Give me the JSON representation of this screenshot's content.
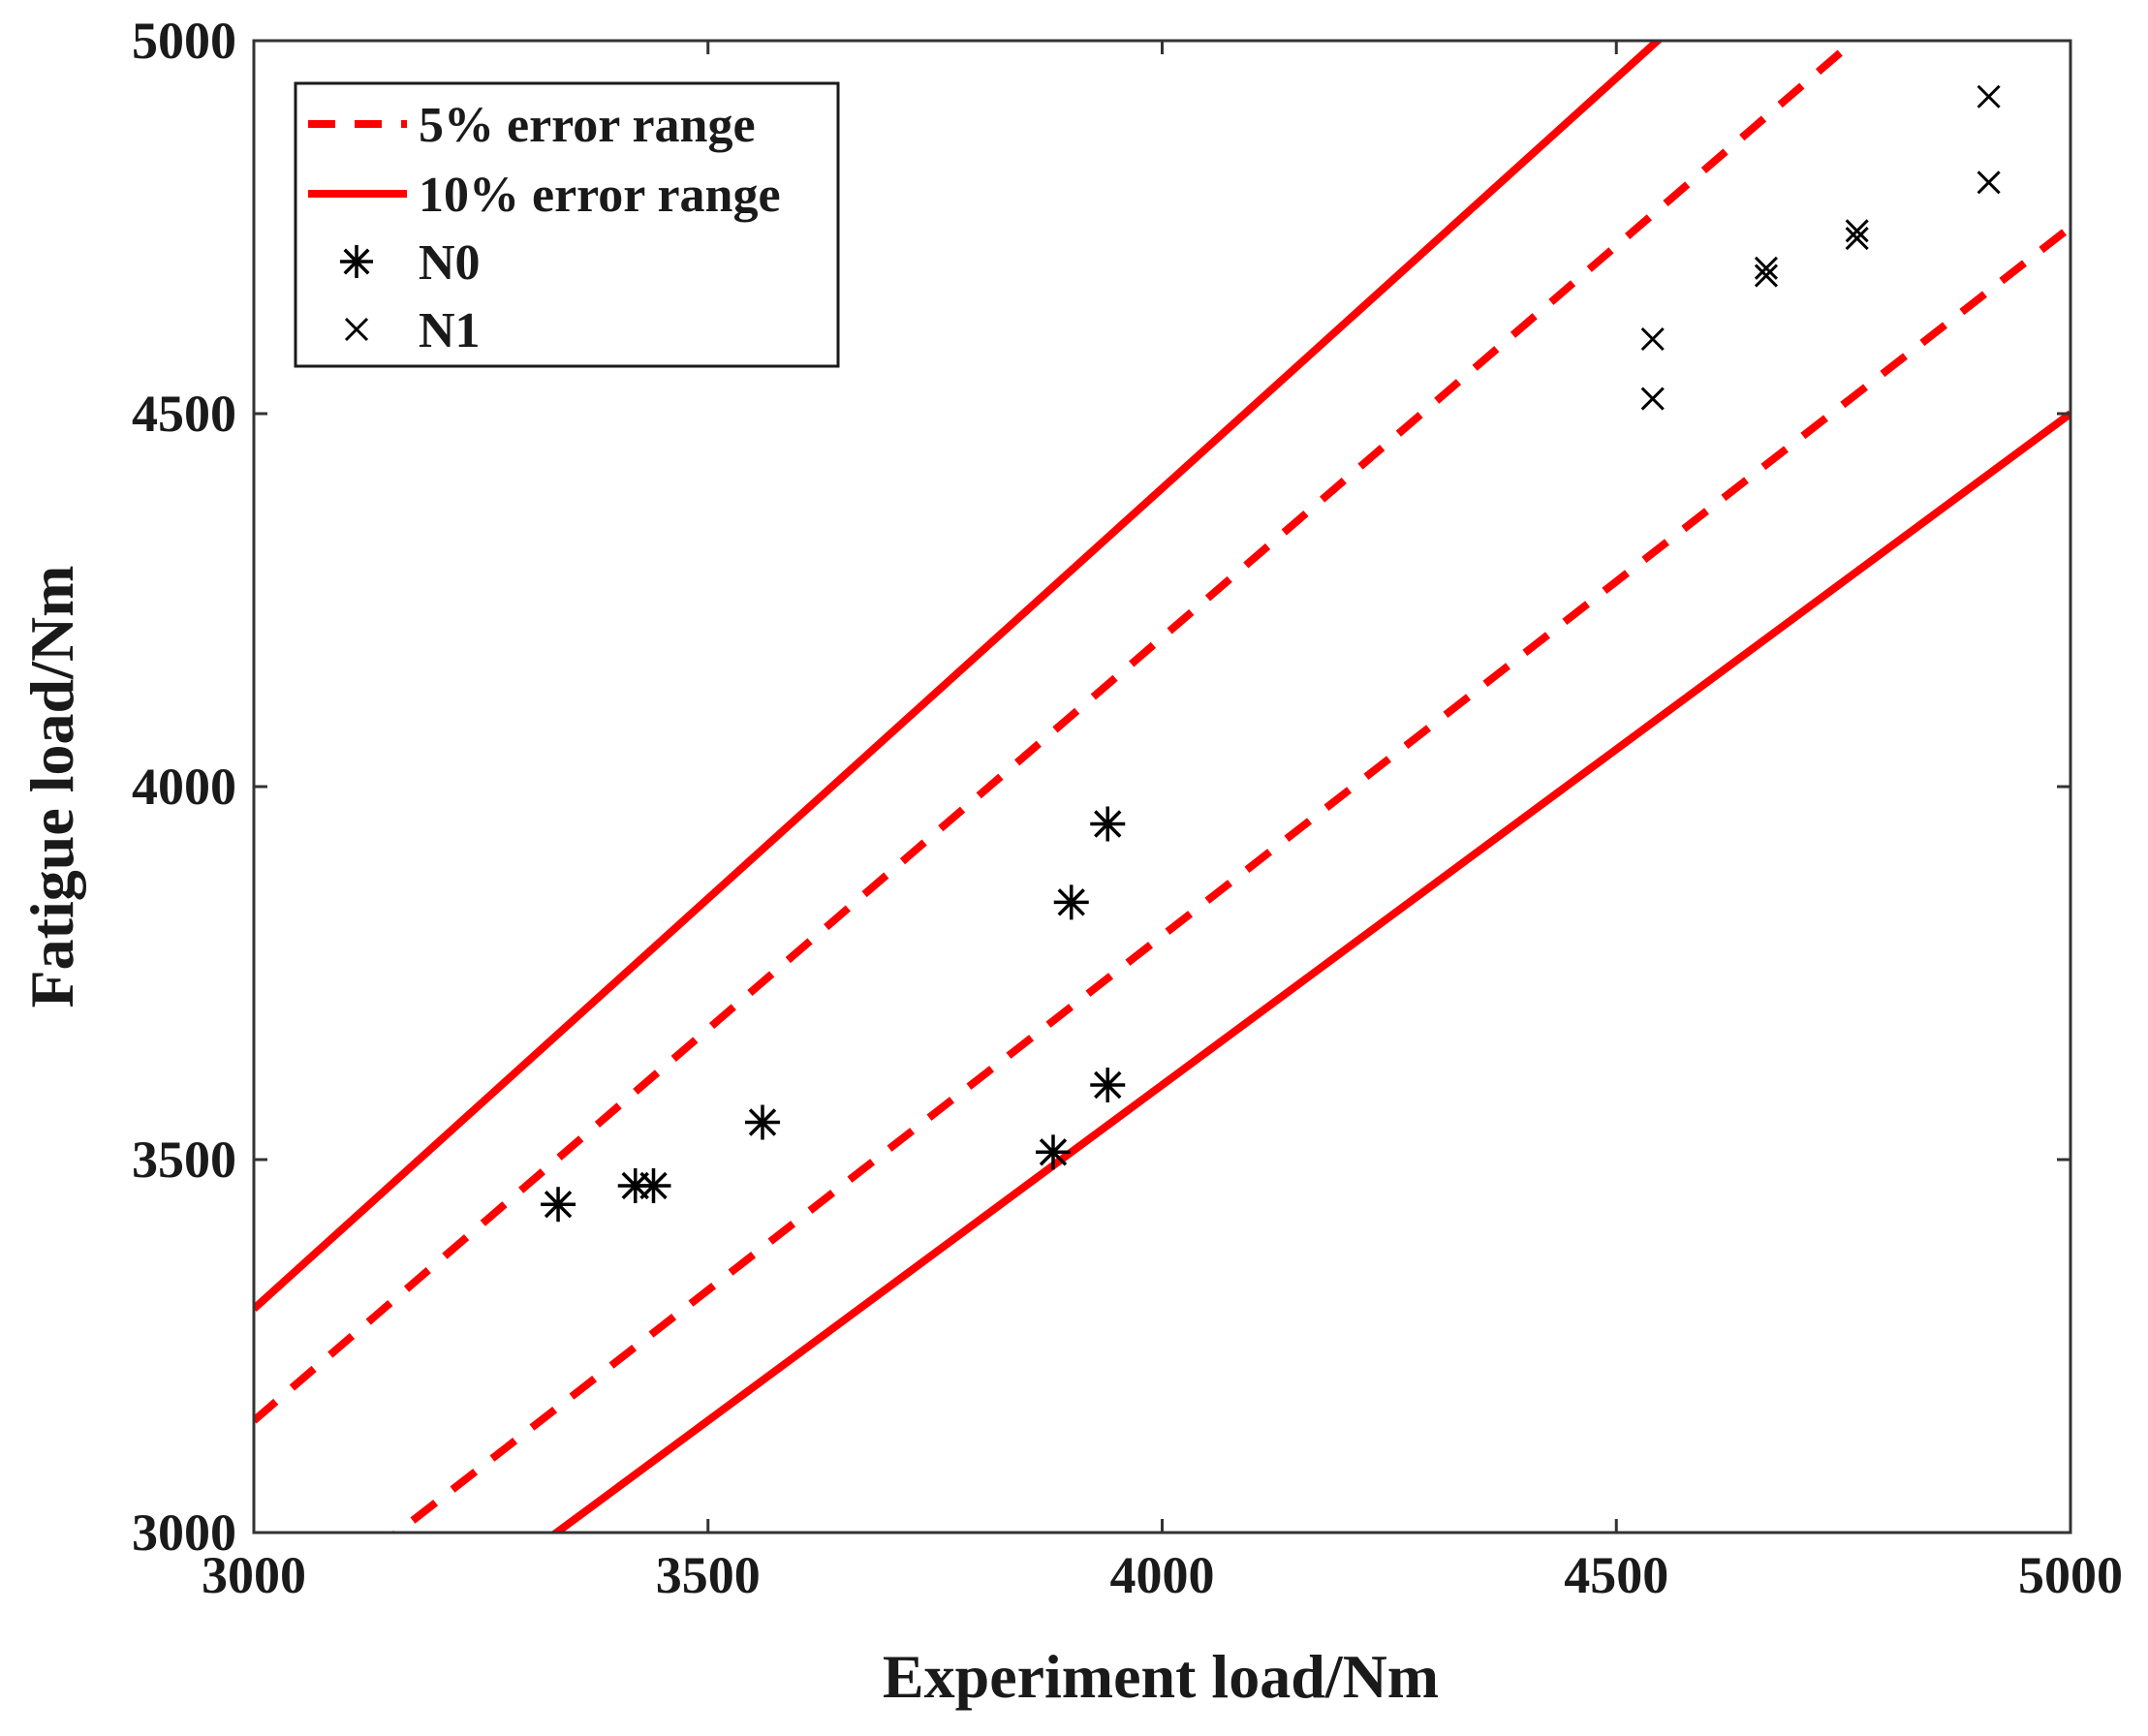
{
  "chart_data": {
    "type": "scatter",
    "title": "",
    "xlabel": "Experiment load/Nm",
    "ylabel": "Fatigue load/Nm",
    "xlim": [
      3000,
      5000
    ],
    "ylim": [
      3000,
      5000
    ],
    "xticks": [
      3000,
      3500,
      4000,
      4500,
      5000
    ],
    "yticks": [
      3000,
      3500,
      4000,
      4500,
      5000
    ],
    "xtick_labels": [
      "3000",
      "3500",
      "4000",
      "4500",
      "5000"
    ],
    "ytick_labels": [
      "3000",
      "3500",
      "4000",
      "4500",
      "5000"
    ],
    "grid": false,
    "legend_position": "top-left",
    "colors": {
      "error_lines": "#ff0000",
      "markers": "#000000",
      "axes": "#333333"
    },
    "reference_lines": [
      {
        "name": "5% error range",
        "style": "dashed",
        "slopes": [
          1.05,
          0.95
        ]
      },
      {
        "name": "10% error range",
        "style": "solid",
        "slopes": [
          1.1,
          0.9
        ]
      }
    ],
    "series": [
      {
        "name": "N0",
        "marker": "asterisk",
        "points": [
          [
            3335,
            3440
          ],
          [
            3420,
            3465
          ],
          [
            3440,
            3465
          ],
          [
            3560,
            3550
          ],
          [
            3880,
            3510
          ],
          [
            3900,
            3845
          ],
          [
            3940,
            3950
          ],
          [
            3940,
            3600
          ]
        ]
      },
      {
        "name": "N1",
        "marker": "x",
        "points": [
          [
            4540,
            4600
          ],
          [
            4540,
            4520
          ],
          [
            4665,
            4685
          ],
          [
            4665,
            4695
          ],
          [
            4765,
            4735
          ],
          [
            4765,
            4745
          ],
          [
            4910,
            4925
          ],
          [
            4910,
            4810
          ]
        ]
      }
    ],
    "legend": [
      {
        "label": "5% error range",
        "kind": "dashed-line"
      },
      {
        "label": "10% error range",
        "kind": "solid-line"
      },
      {
        "label": "N0",
        "kind": "asterisk"
      },
      {
        "label": "N1",
        "kind": "x"
      }
    ]
  }
}
